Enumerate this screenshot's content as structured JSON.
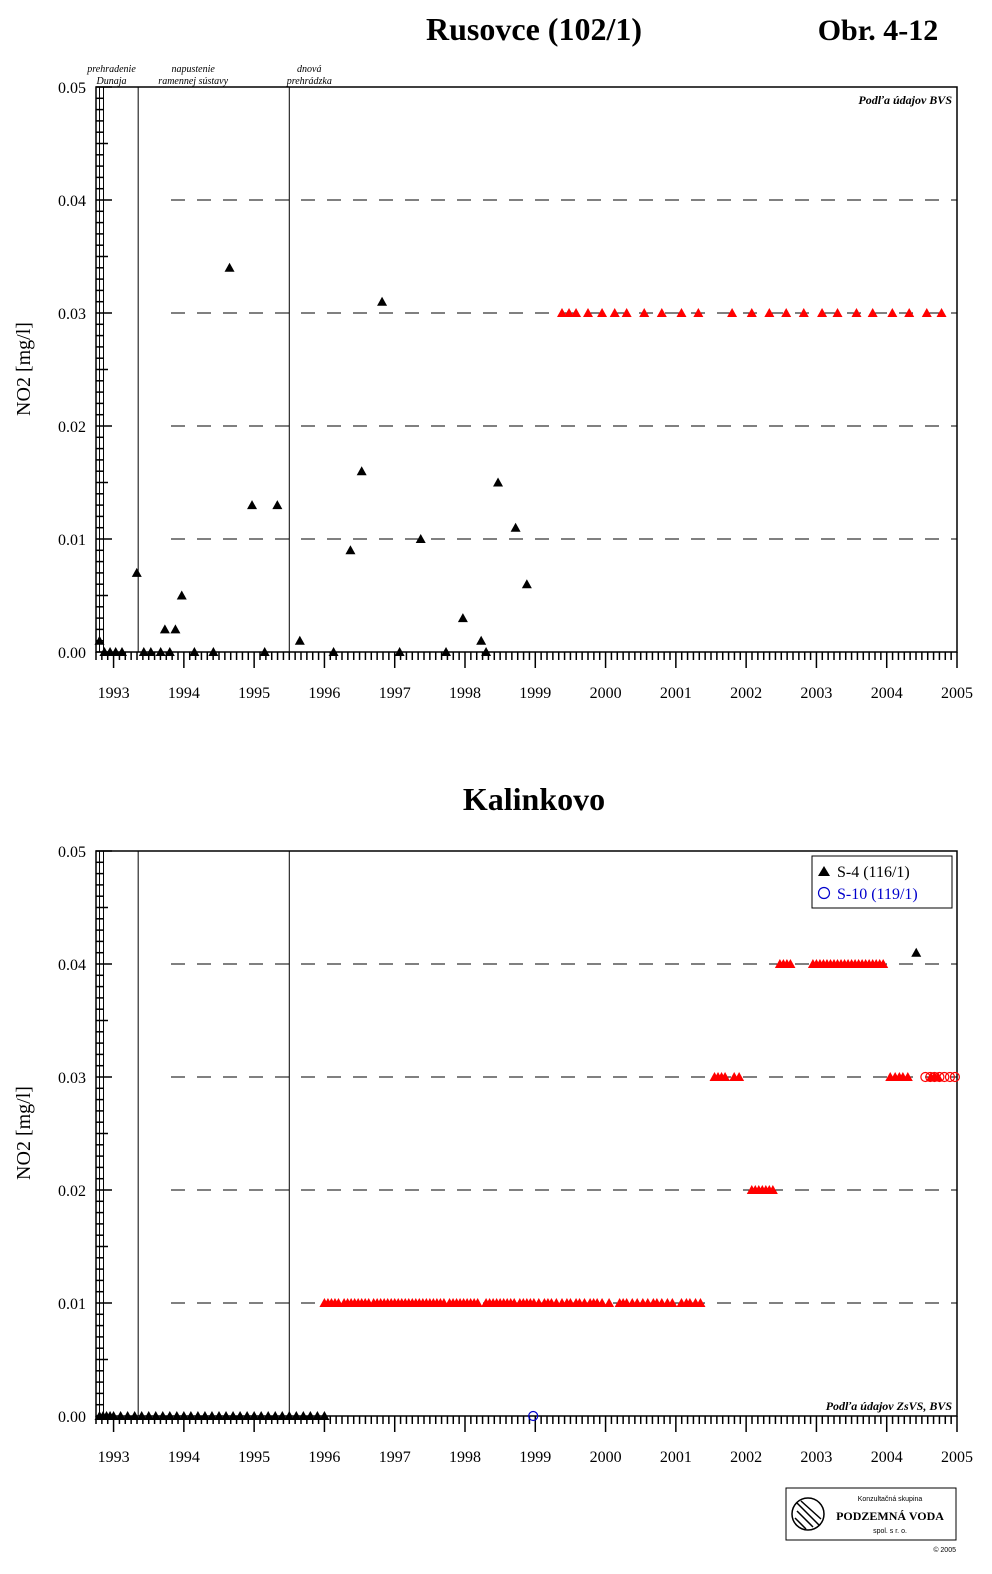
{
  "chart_data": [
    {
      "type": "scatter",
      "title": "Rusovce (102/1)",
      "figure_label": "Obr. 4-12",
      "ylabel": "NO2 [mg/l]",
      "xlim": [
        1992.75,
        2005.0
      ],
      "ylim": [
        0,
        0.05
      ],
      "yticks": [
        "0.00",
        "0.01",
        "0.02",
        "0.03",
        "0.04",
        "0.05"
      ],
      "xticks": [
        "1993",
        "1994",
        "1995",
        "1996",
        "1997",
        "1998",
        "1999",
        "2000",
        "2001",
        "2002",
        "2003",
        "2004",
        "2005"
      ],
      "grid": "dashed horizontal",
      "source_note": "Podľa údajov BVS",
      "event_lines": [
        {
          "x": 1992.8,
          "label": [
            "prehradenie",
            "Dunaja"
          ]
        },
        {
          "x": 1993.35,
          "label": [
            "napustenie",
            "ramennej sústavy"
          ]
        },
        {
          "x": 1995.5,
          "label": [
            "dnová",
            "prehrádzka"
          ]
        }
      ],
      "series": [
        {
          "color": "#000000",
          "marker": "triangle",
          "x": [
            1992.8,
            1992.87,
            1992.95,
            1993.03,
            1993.12,
            1993.33,
            1993.43,
            1993.53,
            1993.67,
            1993.73,
            1993.8,
            1993.88,
            1993.97,
            1994.15,
            1994.42,
            1994.65,
            1994.97,
            1995.15,
            1995.33,
            1995.65,
            1996.13,
            1996.37,
            1996.53,
            1996.82,
            1997.07,
            1997.37,
            1997.73,
            1997.97,
            1998.23,
            1998.3,
            1998.47,
            1998.72,
            1998.88
          ],
          "y": [
            0.001,
            0,
            0,
            0,
            0,
            0.007,
            0,
            0,
            0,
            0.002,
            0,
            0.002,
            0.005,
            0,
            0,
            0.034,
            0.013,
            0,
            0.013,
            0.001,
            0,
            0.009,
            0.016,
            0.031,
            0,
            0.01,
            0,
            0.003,
            0.001,
            0,
            0.015,
            0.011,
            0.006
          ]
        },
        {
          "color": "#ff0000",
          "marker": "triangle",
          "x": [
            1999.38,
            1999.48,
            1999.58,
            1999.75,
            1999.95,
            2000.13,
            2000.3,
            2000.55,
            2000.8,
            2001.08,
            2001.32,
            2001.8,
            2002.08,
            2002.33,
            2002.57,
            2002.82,
            2003.08,
            2003.3,
            2003.57,
            2003.8,
            2004.08,
            2004.32,
            2004.57,
            2004.78
          ],
          "y": [
            0.03,
            0.03,
            0.03,
            0.03,
            0.03,
            0.03,
            0.03,
            0.03,
            0.03,
            0.03,
            0.03,
            0.03,
            0.03,
            0.03,
            0.03,
            0.03,
            0.03,
            0.03,
            0.03,
            0.03,
            0.03,
            0.03,
            0.03,
            0.03
          ]
        }
      ]
    },
    {
      "type": "scatter",
      "title": "Kalinkovo",
      "ylabel": "NO2 [mg/l]",
      "xlim": [
        1992.75,
        2005.0
      ],
      "ylim": [
        0,
        0.05
      ],
      "yticks": [
        "0.00",
        "0.01",
        "0.02",
        "0.03",
        "0.04",
        "0.05"
      ],
      "xticks": [
        "1993",
        "1994",
        "1995",
        "1996",
        "1997",
        "1998",
        "1999",
        "2000",
        "2001",
        "2002",
        "2003",
        "2004",
        "2005"
      ],
      "grid": "dashed horizontal",
      "legend": "top-right",
      "legend_entries": [
        {
          "label": "S-4 (116/1)",
          "color": "#000000",
          "marker": "triangle"
        },
        {
          "label": "S-10 (119/1)",
          "color": "#0000cc",
          "marker": "circle"
        }
      ],
      "source_note": "Podľa údajov ZsVS, BVS",
      "event_lines": [
        {
          "x": 1992.8
        },
        {
          "x": 1993.35
        },
        {
          "x": 1995.5
        }
      ],
      "series": [
        {
          "name": "S-4 (116/1)",
          "color": "#000000",
          "marker": "triangle",
          "x": [
            1992.8,
            1992.85,
            1992.9,
            1992.95,
            1993.0,
            1993.1,
            1993.2,
            1993.3,
            1993.4,
            1993.5,
            1993.6,
            1993.7,
            1993.8,
            1993.9,
            1994.0,
            1994.1,
            1994.2,
            1994.3,
            1994.4,
            1994.5,
            1994.6,
            1994.7,
            1994.8,
            1994.9,
            1995.0,
            1995.1,
            1995.2,
            1995.3,
            1995.4,
            1995.5,
            1995.6,
            1995.7,
            1995.8,
            1995.9,
            1996.0,
            2004.42
          ],
          "y": [
            0,
            0,
            0,
            0,
            0,
            0,
            0,
            0,
            0,
            0,
            0,
            0,
            0,
            0,
            0,
            0,
            0,
            0,
            0,
            0,
            0,
            0,
            0,
            0,
            0,
            0,
            0,
            0,
            0,
            0,
            0,
            0,
            0,
            0,
            0,
            0.041
          ]
        },
        {
          "color": "#ff0000",
          "marker": "triangle",
          "x": [
            1996.0,
            1996.05,
            1996.1,
            1996.15,
            1996.2,
            1996.28,
            1996.33,
            1996.38,
            1996.43,
            1996.48,
            1996.53,
            1996.58,
            1996.63,
            1996.7,
            1996.75,
            1996.8,
            1996.85,
            1996.9,
            1996.95,
            1997.0,
            1997.05,
            1997.1,
            1997.15,
            1997.2,
            1997.25,
            1997.3,
            1997.35,
            1997.4,
            1997.45,
            1997.5,
            1997.55,
            1997.6,
            1997.65,
            1997.7,
            1997.78,
            1997.83,
            1997.88,
            1997.93,
            1997.98,
            1998.03,
            1998.08,
            1998.13,
            1998.18,
            1998.3,
            1998.35,
            1998.4,
            1998.45,
            1998.5,
            1998.55,
            1998.6,
            1998.65,
            1998.7,
            1998.78,
            1998.83,
            1998.88,
            1998.93,
            1998.98,
            1999.05,
            1999.13,
            1999.18,
            1999.23,
            1999.3,
            1999.38,
            1999.45,
            1999.5,
            1999.58,
            1999.63,
            1999.7,
            1999.78,
            1999.83,
            1999.88,
            1999.95,
            2000.05,
            2000.2,
            2000.25,
            2000.3,
            2000.38,
            2000.45,
            2000.53,
            2000.6,
            2000.68,
            2000.73,
            2000.8,
            2000.88,
            2000.95,
            2001.08,
            2001.15,
            2001.2,
            2001.28,
            2001.35,
            2001.55,
            2001.6,
            2001.65,
            2001.7,
            2001.83,
            2001.9,
            2002.08,
            2002.13,
            2002.18,
            2002.23,
            2002.28,
            2002.33,
            2002.38,
            2002.48,
            2002.53,
            2002.58,
            2002.63,
            2002.95,
            2003.0,
            2003.05,
            2003.1,
            2003.15,
            2003.2,
            2003.25,
            2003.3,
            2003.35,
            2003.4,
            2003.45,
            2003.5,
            2003.55,
            2003.6,
            2003.65,
            2003.7,
            2003.75,
            2003.8,
            2003.85,
            2003.9,
            2003.95,
            2004.05,
            2004.12,
            2004.18,
            2004.23,
            2004.3,
            2004.63,
            2004.68,
            2004.73
          ],
          "y": [
            0.01,
            0.01,
            0.01,
            0.01,
            0.01,
            0.01,
            0.01,
            0.01,
            0.01,
            0.01,
            0.01,
            0.01,
            0.01,
            0.01,
            0.01,
            0.01,
            0.01,
            0.01,
            0.01,
            0.01,
            0.01,
            0.01,
            0.01,
            0.01,
            0.01,
            0.01,
            0.01,
            0.01,
            0.01,
            0.01,
            0.01,
            0.01,
            0.01,
            0.01,
            0.01,
            0.01,
            0.01,
            0.01,
            0.01,
            0.01,
            0.01,
            0.01,
            0.01,
            0.01,
            0.01,
            0.01,
            0.01,
            0.01,
            0.01,
            0.01,
            0.01,
            0.01,
            0.01,
            0.01,
            0.01,
            0.01,
            0.01,
            0.01,
            0.01,
            0.01,
            0.01,
            0.01,
            0.01,
            0.01,
            0.01,
            0.01,
            0.01,
            0.01,
            0.01,
            0.01,
            0.01,
            0.01,
            0.01,
            0.01,
            0.01,
            0.01,
            0.01,
            0.01,
            0.01,
            0.01,
            0.01,
            0.01,
            0.01,
            0.01,
            0.01,
            0.01,
            0.01,
            0.01,
            0.01,
            0.01,
            0.03,
            0.03,
            0.03,
            0.03,
            0.03,
            0.03,
            0.02,
            0.02,
            0.02,
            0.02,
            0.02,
            0.02,
            0.02,
            0.04,
            0.04,
            0.04,
            0.04,
            0.04,
            0.04,
            0.04,
            0.04,
            0.04,
            0.04,
            0.04,
            0.04,
            0.04,
            0.04,
            0.04,
            0.04,
            0.04,
            0.04,
            0.04,
            0.04,
            0.04,
            0.04,
            0.04,
            0.04,
            0.04,
            0.03,
            0.03,
            0.03,
            0.03,
            0.03,
            0.03,
            0.03,
            0.03
          ]
        },
        {
          "name": "S-10 (119/1)",
          "color": "#0000cc",
          "marker": "circle",
          "x": [
            1998.97
          ],
          "y": [
            0
          ]
        },
        {
          "color": "#ff0000",
          "marker": "circle",
          "x": [
            2004.55,
            2004.62,
            2004.68,
            2004.75,
            2004.82,
            2004.9,
            2004.97
          ],
          "y": [
            0.03,
            0.03,
            0.03,
            0.03,
            0.03,
            0.03,
            0.03
          ]
        }
      ]
    }
  ],
  "logo": {
    "line1": "Konzultačná skupina",
    "line2": "PODZEMNÁ VODA",
    "line3": "spol. s r. o.",
    "copyright": "© 2005"
  }
}
